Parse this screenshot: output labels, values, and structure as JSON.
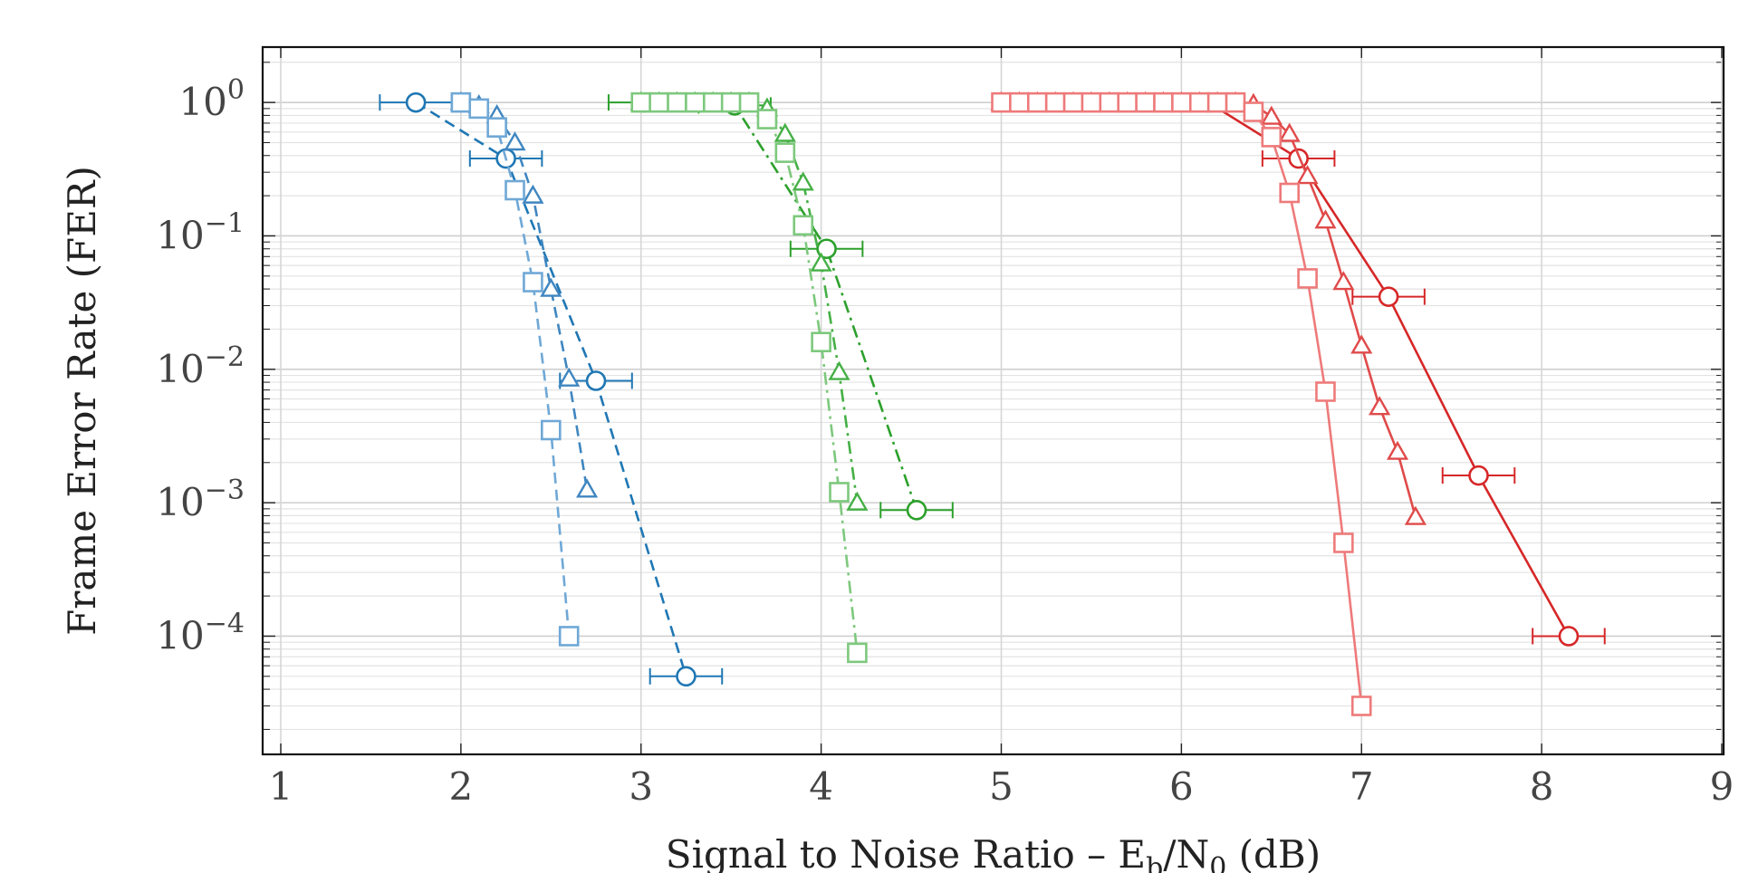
{
  "chart_data": {
    "type": "line",
    "title": "",
    "xlabel": "Signal to Noise Ratio – E_b/N_0 (dB)",
    "xlabel_parts": [
      "Signal to Noise Ratio – E",
      "b",
      "/N",
      "0",
      " (dB)"
    ],
    "ylabel": "Frame Error Rate (FER)",
    "xlim": [
      1,
      9
    ],
    "ylim": [
      1.3e-05,
      2.6
    ],
    "yscale": "log",
    "grid": true,
    "legend": "none",
    "x_ticks": [
      1,
      2,
      3,
      4,
      5,
      6,
      7,
      8,
      9
    ],
    "y_ticks": [
      {
        "value": 1,
        "base": "10",
        "exp": "0"
      },
      {
        "value": 0.1,
        "base": "10",
        "exp": "−1"
      },
      {
        "value": 0.01,
        "base": "10",
        "exp": "−2"
      },
      {
        "value": 0.001,
        "base": "10",
        "exp": "−3"
      },
      {
        "value": 0.0001,
        "base": "10",
        "exp": "−4"
      }
    ],
    "series": [
      {
        "color": "#1f77b4",
        "marker": "circle",
        "dash": "dashed",
        "errorbars": true,
        "x": [
          1.75,
          2.25,
          2.75,
          3.25
        ],
        "y": [
          1.0,
          0.38,
          0.0082,
          5e-05
        ],
        "xerr": [
          0.2,
          0.2,
          0.2,
          0.2
        ]
      },
      {
        "color": "#3f86c0",
        "marker": "triangle",
        "dash": "dashed",
        "errorbars": false,
        "x": [
          2.0,
          2.1,
          2.2,
          2.3,
          2.4,
          2.5,
          2.6,
          2.7
        ],
        "y": [
          1.0,
          0.95,
          0.8,
          0.5,
          0.2,
          0.04,
          0.0085,
          0.00125
        ]
      },
      {
        "color": "#6fa8d6",
        "marker": "square",
        "dash": "dashed",
        "errorbars": false,
        "x": [
          2.0,
          2.1,
          2.2,
          2.3,
          2.4,
          2.5,
          2.6
        ],
        "y": [
          1.0,
          0.9,
          0.65,
          0.22,
          0.045,
          0.0035,
          0.0001
        ]
      },
      {
        "color": "#2ca02c",
        "marker": "circle",
        "dash": "dashdot",
        "errorbars": true,
        "x": [
          3.02,
          3.52,
          4.03,
          4.53
        ],
        "y": [
          1.0,
          0.95,
          0.08,
          0.00088
        ],
        "xerr": [
          0.2,
          0.2,
          0.2,
          0.2
        ]
      },
      {
        "color": "#45b045",
        "marker": "triangle",
        "dash": "dashdot",
        "errorbars": false,
        "x": [
          3.0,
          3.1,
          3.2,
          3.3,
          3.4,
          3.5,
          3.6,
          3.7,
          3.8,
          3.9,
          4.0,
          4.1,
          4.2
        ],
        "y": [
          1.0,
          1.0,
          1.0,
          1.0,
          1.0,
          1.0,
          1.0,
          0.9,
          0.58,
          0.25,
          0.062,
          0.0095,
          0.001
        ]
      },
      {
        "color": "#7dc87d",
        "marker": "square",
        "dash": "dashdot",
        "errorbars": false,
        "x": [
          3.0,
          3.1,
          3.2,
          3.3,
          3.4,
          3.5,
          3.6,
          3.7,
          3.8,
          3.9,
          4.0,
          4.1,
          4.2
        ],
        "y": [
          1.0,
          1.0,
          1.0,
          1.0,
          1.0,
          1.0,
          1.0,
          0.75,
          0.42,
          0.12,
          0.016,
          0.0012,
          7.5e-05
        ]
      },
      {
        "color": "#d62728",
        "marker": "circle",
        "dash": "solid",
        "errorbars": true,
        "x": [
          5.15,
          5.65,
          6.15,
          6.65,
          7.15,
          7.65,
          8.15
        ],
        "y": [
          1.0,
          1.0,
          1.0,
          0.38,
          0.035,
          0.0016,
          0.0001
        ],
        "xerr": [
          0.2,
          0.2,
          0.2,
          0.2,
          0.2,
          0.2,
          0.2
        ]
      },
      {
        "color": "#e04a4a",
        "marker": "triangle",
        "dash": "solid",
        "errorbars": false,
        "x": [
          5.0,
          5.1,
          5.2,
          5.3,
          5.4,
          5.5,
          5.6,
          5.7,
          5.8,
          5.9,
          6.0,
          6.1,
          6.2,
          6.3,
          6.4,
          6.5,
          6.6,
          6.7,
          6.8,
          6.9,
          7.0,
          7.1,
          7.2,
          7.3
        ],
        "y": [
          1.0,
          1.0,
          1.0,
          1.0,
          1.0,
          1.0,
          1.0,
          1.0,
          1.0,
          1.0,
          1.0,
          1.0,
          1.0,
          1.0,
          0.97,
          0.78,
          0.58,
          0.28,
          0.13,
          0.045,
          0.015,
          0.0052,
          0.0024,
          0.00078
        ]
      },
      {
        "color": "#ee7a7a",
        "marker": "square",
        "dash": "solid",
        "errorbars": false,
        "x": [
          5.0,
          5.1,
          5.2,
          5.3,
          5.4,
          5.5,
          5.6,
          5.7,
          5.8,
          5.9,
          6.0,
          6.1,
          6.2,
          6.3,
          6.4,
          6.5,
          6.6,
          6.7,
          6.8,
          6.9,
          7.0
        ],
        "y": [
          1.0,
          1.0,
          1.0,
          1.0,
          1.0,
          1.0,
          1.0,
          1.0,
          1.0,
          1.0,
          1.0,
          1.0,
          1.0,
          1.0,
          0.85,
          0.55,
          0.21,
          0.048,
          0.0068,
          0.0005,
          3e-05
        ]
      }
    ]
  }
}
